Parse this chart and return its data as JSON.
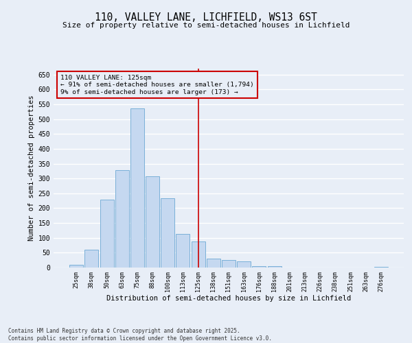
{
  "title_line1": "110, VALLEY LANE, LICHFIELD, WS13 6ST",
  "title_line2": "Size of property relative to semi-detached houses in Lichfield",
  "xlabel": "Distribution of semi-detached houses by size in Lichfield",
  "ylabel": "Number of semi-detached properties",
  "categories": [
    "25sqm",
    "38sqm",
    "50sqm",
    "63sqm",
    "75sqm",
    "88sqm",
    "100sqm",
    "113sqm",
    "125sqm",
    "138sqm",
    "151sqm",
    "163sqm",
    "176sqm",
    "188sqm",
    "201sqm",
    "213sqm",
    "226sqm",
    "238sqm",
    "251sqm",
    "263sqm",
    "276sqm"
  ],
  "values": [
    9,
    60,
    229,
    329,
    537,
    308,
    234,
    114,
    87,
    31,
    26,
    20,
    5,
    5,
    0,
    0,
    0,
    0,
    0,
    0,
    2
  ],
  "bar_color": "#c5d8f0",
  "bar_edge_color": "#7ab0d8",
  "property_line_index": 8,
  "annotation_title": "110 VALLEY LANE: 125sqm",
  "annotation_line2": "← 91% of semi-detached houses are smaller (1,794)",
  "annotation_line3": "9% of semi-detached houses are larger (173) →",
  "ylim": [
    0,
    670
  ],
  "yticks": [
    0,
    50,
    100,
    150,
    200,
    250,
    300,
    350,
    400,
    450,
    500,
    550,
    600,
    650
  ],
  "background_color": "#e8eef7",
  "grid_color": "#ffffff",
  "footnote_line1": "Contains HM Land Registry data © Crown copyright and database right 2025.",
  "footnote_line2": "Contains public sector information licensed under the Open Government Licence v3.0."
}
